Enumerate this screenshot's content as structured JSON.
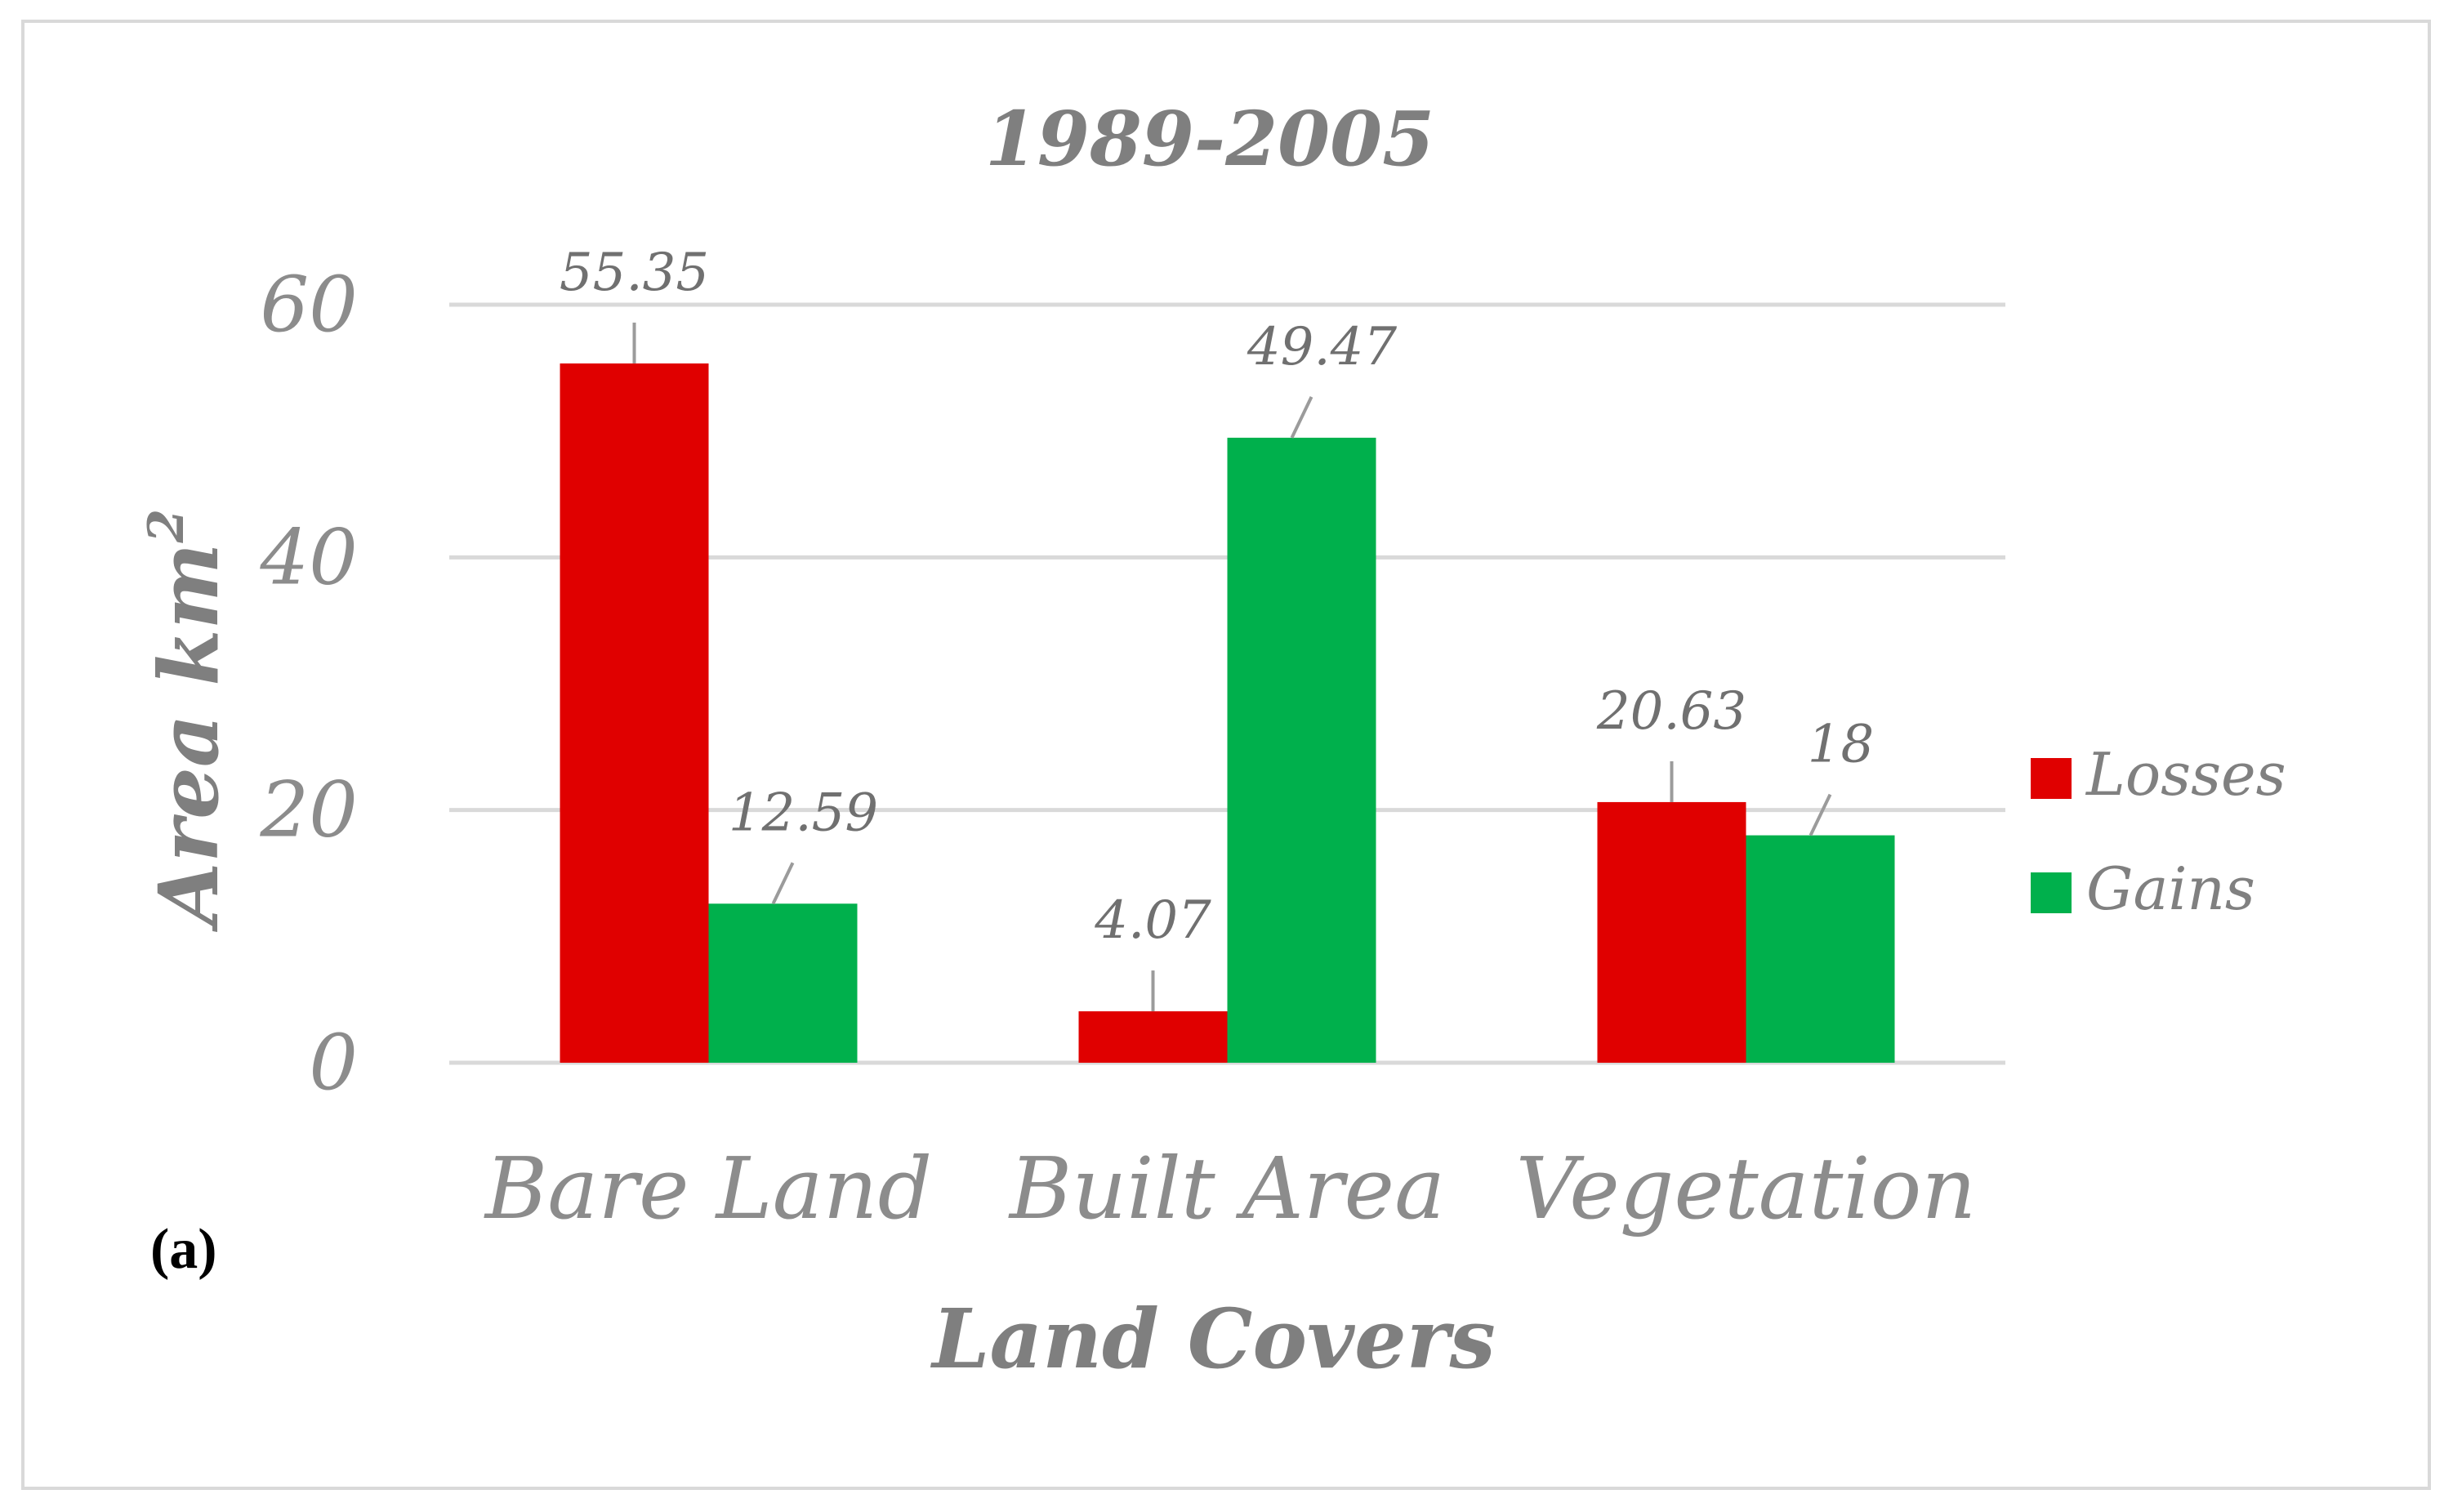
{
  "panel_label": "(a)",
  "chart_data": {
    "type": "bar",
    "title": "1989-2005",
    "xlabel": "Land Covers",
    "ylabel": "Area km",
    "ylabel_superscript": "2",
    "categories": [
      "Bare Land",
      "Built Area",
      "Vegetation"
    ],
    "series": [
      {
        "name": "Losses",
        "color": "#e00000",
        "values": [
          55.35,
          4.07,
          20.63
        ]
      },
      {
        "name": "Gains",
        "color": "#00b04c",
        "values": [
          12.59,
          49.47,
          18
        ]
      }
    ],
    "data_labels": [
      [
        "55.35",
        "4.07",
        "20.63"
      ],
      [
        "12.59",
        "49.47",
        "18"
      ]
    ],
    "yticks": [
      "0",
      "20",
      "40",
      "60"
    ],
    "ylim": [
      0,
      60
    ],
    "grid": true,
    "legend_position": "right"
  }
}
